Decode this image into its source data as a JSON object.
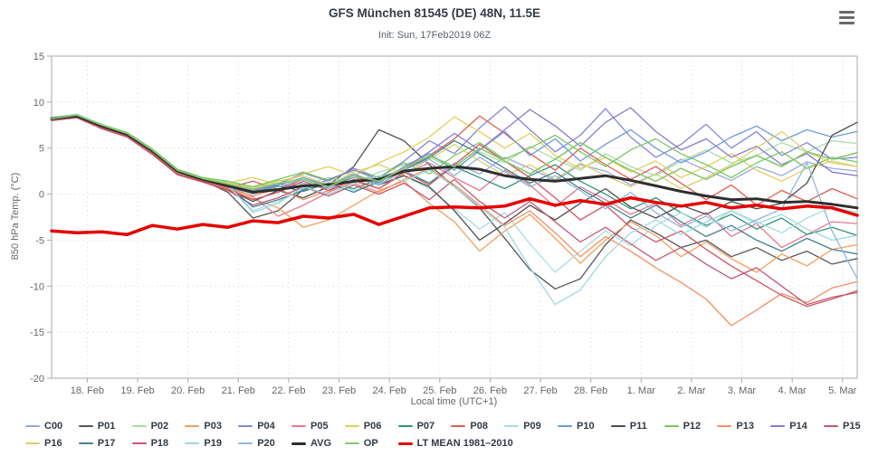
{
  "header": {
    "menu_tooltip": "Chart context menu"
  },
  "chart_data": {
    "type": "line",
    "title": "GFS München 81545 (DE) 48N, 11.5E",
    "subtitle": "Init: Sun, 17Feb2019 06Z",
    "ylabel": "850 hPa Temp. (°C)",
    "xlabel": "Local time (UTC+1)",
    "ylim": [
      -20,
      15
    ],
    "y_ticks": [
      15,
      10,
      5,
      0,
      -5,
      -10,
      -15,
      -20
    ],
    "x_tick_labels": [
      "18. Feb",
      "19. Feb",
      "20. Feb",
      "21. Feb",
      "22. Feb",
      "23. Feb",
      "24. Feb",
      "25. Feb",
      "26. Feb",
      "27. Feb",
      "28. Feb",
      "1. Mar",
      "2. Mar",
      "3. Mar",
      "4. Mar",
      "5. Mar"
    ],
    "x_tick_hours": [
      17,
      41,
      65,
      89,
      113,
      137,
      161,
      185,
      209,
      233,
      257,
      281,
      305,
      329,
      353,
      377
    ],
    "start_label": "17 Feb 2019 07:00 local",
    "time_step_hours": 12,
    "total_hours": 384,
    "grid": "dashed",
    "legend_position": "bottom",
    "colors": {
      "grid": "#e9e9e9",
      "frame": "#aaaaaa",
      "tick_text": "#666666"
    },
    "series": [
      {
        "name": "C00",
        "color": "#9aa7dd",
        "width": 1.3,
        "values": [
          8.3,
          8.6,
          7.5,
          6.6,
          4.7,
          2.5,
          1.7,
          1.0,
          0.4,
          0.8,
          1.2,
          0.6,
          1.5,
          1.9,
          2.6,
          1.2,
          3.4,
          2.2,
          4.0,
          2.8,
          1.5,
          3.2,
          2.5,
          1.0,
          2.2,
          3.8,
          2.6,
          1.5,
          3.0,
          2.0,
          3.5,
          2.8,
          2.5
        ]
      },
      {
        "name": "P01",
        "color": "#555555",
        "width": 1.3,
        "values": [
          8.1,
          8.5,
          7.3,
          6.4,
          4.5,
          2.3,
          1.5,
          0.2,
          -2.6,
          -1.8,
          0.5,
          1.0,
          3.0,
          7.0,
          5.8,
          3.2,
          0.8,
          -1.5,
          -4.8,
          -8.2,
          -10.3,
          -9.2,
          -5.5,
          -2.8,
          -4.2,
          -5.8,
          -5.0,
          -6.8,
          -5.8,
          -7.2,
          -6.2,
          -7.6,
          -7.0
        ]
      },
      {
        "name": "P02",
        "color": "#aadcaa",
        "width": 1.3,
        "values": [
          8.2,
          8.7,
          7.6,
          6.7,
          4.9,
          2.7,
          1.8,
          1.3,
          0.7,
          1.5,
          1.0,
          1.8,
          1.2,
          2.4,
          3.2,
          4.0,
          2.8,
          4.6,
          3.4,
          5.2,
          3.8,
          2.6,
          4.4,
          3.0,
          2.0,
          3.6,
          4.8,
          3.4,
          4.2,
          5.6,
          4.6,
          5.8,
          5.5
        ]
      },
      {
        "name": "P03",
        "color": "#f4a05c",
        "width": 1.3,
        "values": [
          8.0,
          8.4,
          7.2,
          6.3,
          4.4,
          2.2,
          1.3,
          0.6,
          -0.5,
          -1.5,
          -3.6,
          -2.8,
          -1.2,
          0.4,
          1.4,
          -1.0,
          -3.0,
          -6.2,
          -4.0,
          -2.2,
          -4.8,
          -7.5,
          -5.0,
          -3.0,
          -4.5,
          -6.8,
          -5.2,
          -7.0,
          -8.5,
          -6.5,
          -7.8,
          -6.0,
          -5.5
        ]
      },
      {
        "name": "P04",
        "color": "#8287d6",
        "width": 1.3,
        "values": [
          8.3,
          8.6,
          7.4,
          6.5,
          4.6,
          2.4,
          1.6,
          0.9,
          0.3,
          1.1,
          2.3,
          1.4,
          2.8,
          1.8,
          3.6,
          5.8,
          4.4,
          7.2,
          9.5,
          7.0,
          4.6,
          6.4,
          9.3,
          6.2,
          4.0,
          5.4,
          7.6,
          5.0,
          6.8,
          4.2,
          5.6,
          3.8,
          4.0
        ]
      },
      {
        "name": "P05",
        "color": "#e2798f",
        "width": 1.3,
        "values": [
          8.1,
          8.4,
          7.3,
          6.5,
          4.6,
          2.5,
          1.6,
          0.8,
          -0.3,
          -2.4,
          -1.2,
          0.2,
          1.4,
          0.6,
          2.2,
          3.4,
          1.8,
          0.4,
          2.6,
          1.0,
          -1.4,
          0.8,
          -0.6,
          -2.2,
          -1.0,
          -3.4,
          -2.0,
          -4.6,
          -3.2,
          -5.8,
          -4.4,
          -3.0,
          -3.2
        ]
      },
      {
        "name": "P06",
        "color": "#e3cf5a",
        "width": 1.3,
        "values": [
          8.2,
          8.6,
          7.5,
          6.6,
          4.8,
          2.6,
          1.7,
          1.2,
          1.8,
          1.0,
          2.2,
          3.0,
          2.0,
          3.4,
          4.6,
          6.2,
          8.4,
          6.8,
          5.0,
          6.6,
          4.2,
          2.8,
          4.0,
          2.4,
          3.6,
          1.8,
          3.0,
          4.4,
          2.6,
          1.4,
          2.8,
          3.6,
          3.0
        ]
      },
      {
        "name": "P07",
        "color": "#2f9477",
        "width": 1.3,
        "values": [
          8.2,
          8.5,
          7.4,
          6.5,
          4.7,
          2.5,
          1.6,
          1.0,
          0.2,
          0.9,
          0.3,
          1.2,
          0.6,
          1.6,
          2.4,
          1.2,
          3.0,
          1.8,
          0.6,
          2.0,
          3.2,
          1.4,
          0.0,
          -1.6,
          -0.4,
          -2.0,
          -3.4,
          -2.2,
          -3.8,
          -2.6,
          -4.4,
          -3.6,
          -4.5
        ]
      },
      {
        "name": "P08",
        "color": "#e05c51",
        "width": 1.3,
        "values": [
          8.0,
          8.3,
          7.2,
          6.4,
          4.5,
          2.4,
          1.5,
          0.7,
          1.4,
          0.5,
          1.6,
          0.8,
          2.0,
          1.0,
          2.6,
          4.2,
          6.0,
          8.5,
          6.6,
          4.4,
          2.6,
          5.0,
          3.2,
          1.6,
          3.0,
          1.2,
          -0.6,
          1.0,
          -1.2,
          0.4,
          -0.8,
          0.6,
          -0.5
        ]
      },
      {
        "name": "P09",
        "color": "#a5dde2",
        "width": 1.3,
        "values": [
          8.3,
          8.7,
          7.5,
          6.6,
          4.8,
          2.6,
          1.7,
          1.1,
          -1.8,
          -0.8,
          0.6,
          1.4,
          0.4,
          1.2,
          2.0,
          0.6,
          -1.6,
          -3.8,
          -2.0,
          -5.4,
          -8.5,
          -6.2,
          -4.0,
          -5.6,
          -3.4,
          -2.0,
          -3.6,
          -1.8,
          -3.0,
          -4.2,
          -2.6,
          -1.4,
          -2.0
        ]
      },
      {
        "name": "P10",
        "color": "#6b9bd9",
        "width": 1.3,
        "values": [
          8.2,
          8.5,
          7.3,
          6.4,
          4.6,
          2.4,
          1.5,
          0.8,
          0.2,
          1.0,
          1.8,
          0.9,
          2.2,
          1.2,
          3.0,
          4.4,
          2.6,
          4.8,
          6.8,
          4.2,
          6.0,
          3.6,
          5.4,
          7.0,
          5.0,
          3.4,
          4.6,
          6.2,
          7.4,
          5.8,
          7.0,
          6.2,
          6.8
        ]
      },
      {
        "name": "P11",
        "color": "#4d4d4d",
        "width": 1.3,
        "values": [
          8.1,
          8.4,
          7.2,
          6.3,
          4.4,
          2.2,
          1.4,
          0.5,
          -0.8,
          0.4,
          -0.4,
          0.8,
          1.8,
          1.0,
          2.0,
          0.8,
          -1.8,
          -5.0,
          -3.2,
          -1.2,
          -2.8,
          -1.0,
          0.6,
          -1.4,
          -2.6,
          -1.2,
          -2.2,
          -0.8,
          -1.6,
          -1.0,
          1.2,
          6.4,
          7.8
        ]
      },
      {
        "name": "P12",
        "color": "#79c961",
        "width": 1.3,
        "values": [
          8.3,
          8.6,
          7.5,
          6.7,
          4.9,
          2.7,
          1.8,
          1.4,
          0.8,
          1.6,
          2.4,
          1.5,
          2.6,
          1.8,
          3.4,
          2.2,
          4.2,
          5.6,
          3.8,
          5.0,
          6.4,
          4.6,
          3.0,
          4.8,
          6.0,
          4.4,
          3.2,
          1.8,
          3.4,
          4.6,
          2.8,
          4.0,
          3.5
        ]
      },
      {
        "name": "P13",
        "color": "#f09160",
        "width": 1.3,
        "values": [
          8.1,
          8.5,
          7.3,
          6.4,
          4.5,
          2.3,
          1.4,
          0.6,
          -0.2,
          0.6,
          -0.6,
          0.4,
          1.2,
          0.2,
          1.6,
          2.8,
          1.0,
          -1.2,
          -3.4,
          -1.8,
          -4.2,
          -6.8,
          -4.6,
          -6.2,
          -8.0,
          -9.6,
          -11.4,
          -14.3,
          -12.6,
          -10.8,
          -11.8,
          -10.2,
          -9.5
        ]
      },
      {
        "name": "P14",
        "color": "#8a7ac9",
        "width": 1.3,
        "values": [
          8.2,
          8.6,
          7.4,
          6.5,
          4.7,
          2.5,
          1.6,
          1.0,
          0.4,
          1.2,
          0.5,
          1.6,
          2.6,
          1.6,
          2.8,
          4.6,
          6.6,
          4.8,
          7.0,
          9.2,
          7.4,
          5.2,
          7.8,
          9.4,
          6.8,
          4.8,
          6.0,
          4.0,
          5.2,
          3.2,
          4.4,
          2.4,
          2.0
        ]
      },
      {
        "name": "P15",
        "color": "#c25874",
        "width": 1.3,
        "values": [
          8.0,
          8.3,
          7.1,
          6.2,
          4.3,
          2.1,
          1.3,
          0.4,
          -1.2,
          -0.4,
          0.8,
          -0.2,
          1.0,
          0.0,
          1.2,
          -0.6,
          1.6,
          -0.8,
          -2.6,
          -0.8,
          -3.0,
          -5.2,
          -3.6,
          -5.4,
          -7.2,
          -5.8,
          -7.6,
          -9.2,
          -8.0,
          -10.0,
          -12.0,
          -11.2,
          -10.7
        ]
      },
      {
        "name": "P16",
        "color": "#d9d06b",
        "width": 1.3,
        "values": [
          8.2,
          8.5,
          7.4,
          6.6,
          4.8,
          2.6,
          1.7,
          1.2,
          0.6,
          1.4,
          2.0,
          1.0,
          2.4,
          3.2,
          2.2,
          3.8,
          5.4,
          3.6,
          2.0,
          3.2,
          1.6,
          3.4,
          2.0,
          0.8,
          2.2,
          0.6,
          1.8,
          3.2,
          5.0,
          6.8,
          4.6,
          3.4,
          3.0
        ]
      },
      {
        "name": "P17",
        "color": "#45808f",
        "width": 1.3,
        "values": [
          8.1,
          8.4,
          7.3,
          6.4,
          4.6,
          2.4,
          1.5,
          0.9,
          -1.4,
          -0.6,
          0.4,
          1.2,
          0.2,
          1.4,
          2.6,
          4.0,
          5.8,
          4.4,
          2.8,
          1.2,
          2.4,
          0.6,
          -1.0,
          -2.6,
          -1.2,
          -3.0,
          -4.6,
          -3.4,
          -5.0,
          -6.2,
          -4.8,
          -6.0,
          -6.5
        ]
      },
      {
        "name": "P18",
        "color": "#cc5565",
        "width": 1.3,
        "values": [
          8.0,
          8.4,
          7.2,
          6.3,
          4.4,
          2.2,
          1.4,
          0.5,
          -0.6,
          0.2,
          1.4,
          0.4,
          1.6,
          0.6,
          2.4,
          1.0,
          3.2,
          5.4,
          3.6,
          1.8,
          -0.4,
          -2.8,
          -1.2,
          -3.6,
          -5.2,
          -4.0,
          -6.0,
          -7.8,
          -9.4,
          -11.0,
          -12.2,
          -11.4,
          -10.5
        ]
      },
      {
        "name": "P19",
        "color": "#9fd9df",
        "width": 1.3,
        "values": [
          8.3,
          8.6,
          7.5,
          6.6,
          4.7,
          2.5,
          1.6,
          1.0,
          -2.0,
          -1.0,
          0.8,
          0.0,
          1.2,
          2.0,
          1.4,
          2.6,
          0.8,
          -1.4,
          -3.6,
          -8.0,
          -12.0,
          -10.4,
          -6.8,
          -4.2,
          -2.8,
          -4.4,
          -3.0,
          -1.8,
          -3.2,
          -2.2,
          -3.8,
          -5.0,
          -4.5
        ]
      },
      {
        "name": "P20",
        "color": "#8fb8dc",
        "width": 1.3,
        "values": [
          8.2,
          8.5,
          7.4,
          6.5,
          4.6,
          2.4,
          1.6,
          0.8,
          0.0,
          0.8,
          1.6,
          0.6,
          1.8,
          1.0,
          2.6,
          3.8,
          2.0,
          4.0,
          2.4,
          0.8,
          2.0,
          0.4,
          -1.6,
          0.2,
          -2.0,
          -3.6,
          -2.4,
          -4.0,
          -2.8,
          -1.6,
          3.4,
          -4.0,
          -9.2
        ]
      },
      {
        "name": "AVG",
        "color": "#2e2e2e",
        "width": 3,
        "values": [
          8.2,
          8.5,
          7.4,
          6.5,
          4.7,
          2.5,
          1.6,
          0.9,
          0.2,
          0.5,
          0.9,
          1.0,
          1.4,
          1.6,
          2.5,
          2.8,
          3.0,
          2.7,
          2.0,
          1.6,
          1.4,
          1.7,
          2.0,
          1.5,
          0.9,
          0.3,
          -0.2,
          -0.6,
          -0.5,
          -0.9,
          -0.8,
          -1.1,
          -1.5
        ]
      },
      {
        "name": "OP",
        "color": "#86c96f",
        "width": 1.6,
        "values": [
          8.2,
          8.6,
          7.5,
          6.6,
          4.8,
          2.6,
          1.7,
          1.1,
          0.5,
          1.2,
          1.6,
          0.8,
          2.0,
          1.4,
          2.8,
          4.2,
          3.0,
          5.0,
          3.6,
          2.2,
          3.8,
          5.6,
          4.0,
          2.6,
          1.4,
          2.8,
          1.6,
          3.0,
          4.2,
          3.0,
          4.6,
          3.8,
          4.5
        ]
      },
      {
        "name": "LT MEAN 1981–2010",
        "color": "#e60000",
        "width": 3.5,
        "values": [
          -4.0,
          -4.2,
          -4.1,
          -4.4,
          -3.4,
          -3.8,
          -3.3,
          -3.6,
          -2.9,
          -3.1,
          -2.4,
          -2.6,
          -2.2,
          -3.3,
          -2.4,
          -1.5,
          -1.4,
          -1.5,
          -1.3,
          -0.5,
          -1.2,
          -0.7,
          -1.1,
          -0.4,
          -0.9,
          -1.3,
          -0.9,
          -1.5,
          -1.2,
          -1.6,
          -1.3,
          -1.5,
          -2.3
        ]
      }
    ]
  }
}
